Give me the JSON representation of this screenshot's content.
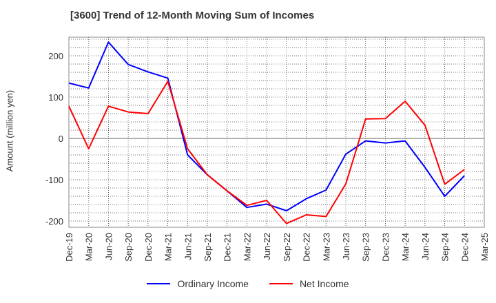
{
  "chart_data": {
    "type": "line",
    "title": "[3600]  Trend of 12-Month Moving Sum of Incomes",
    "xlabel": "",
    "ylabel": "Amount (million yen)",
    "ylim": [
      -215,
      245
    ],
    "yticks": [
      200,
      100,
      0,
      -100,
      -200
    ],
    "grid": true,
    "legend_position": "bottom",
    "categories": [
      "Dec-19",
      "Mar-20",
      "Jun-20",
      "Sep-20",
      "Dec-20",
      "Mar-21",
      "Jun-21",
      "Sep-21",
      "Dec-21",
      "Mar-22",
      "Jun-22",
      "Sep-22",
      "Dec-22",
      "Mar-23",
      "Jun-23",
      "Sep-23",
      "Dec-23",
      "Mar-24",
      "Jun-24",
      "Sep-24",
      "Dec-24",
      "Mar-25"
    ],
    "series": [
      {
        "name": "Ordinary Income",
        "color": "#0000ff",
        "values": [
          134,
          122,
          233,
          179,
          161,
          146,
          -40,
          -88,
          -127,
          -167,
          -159,
          -175,
          -146,
          -125,
          -38,
          -6,
          -11,
          -6,
          -70,
          -140,
          -90,
          null
        ]
      },
      {
        "name": "Net Income",
        "color": "#ff0000",
        "values": [
          78,
          -25,
          78,
          64,
          60,
          138,
          -25,
          -88,
          -127,
          -162,
          -150,
          -206,
          -185,
          -189,
          -110,
          47,
          48,
          90,
          32,
          -111,
          -75,
          null
        ]
      }
    ]
  }
}
